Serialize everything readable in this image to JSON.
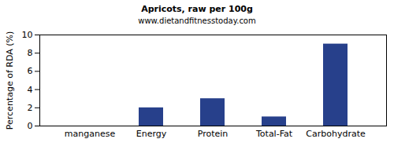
{
  "chart_data": {
    "type": "bar",
    "title": "Apricots, raw per 100g",
    "subtitle": "www.dietandfitnesstoday.com",
    "y_label": "Percentage of RDA (%)",
    "categories": [
      "manganese",
      "Energy",
      "Protein",
      "Total-Fat",
      "Carbohydrate"
    ],
    "values": [
      0,
      2,
      3,
      1,
      9
    ],
    "color": "#27408b",
    "ylim": [
      0,
      10
    ],
    "yticks": [
      0,
      2,
      4,
      6,
      8,
      10
    ],
    "grid": false
  }
}
